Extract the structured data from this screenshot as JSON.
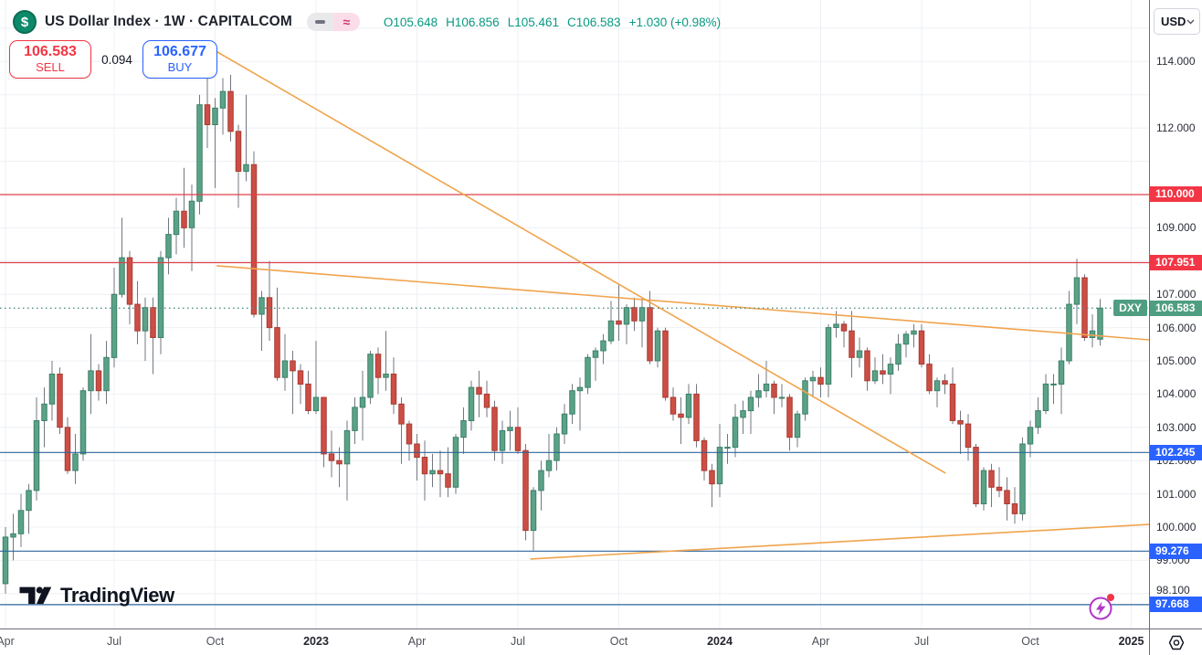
{
  "header": {
    "symbol_logo_glyph": "$",
    "title": "US Dollar Index · 1W · CAPITALCOM",
    "badges": [
      {
        "icon": "minus-icon"
      },
      {
        "icon": "approx-icon",
        "glyph": "≈"
      }
    ],
    "ohlc": {
      "open": "O105.648",
      "high": "H106.856",
      "low": "L105.461",
      "close": "C106.583",
      "change": "+1.030 (+0.98%)"
    }
  },
  "trade_panel": {
    "sell_price": "106.583",
    "sell_label": "SELL",
    "spread": "0.094",
    "buy_price": "106.677",
    "buy_label": "BUY"
  },
  "price_axis": {
    "currency": "USD",
    "plain_ticks": [
      {
        "price": 114.0,
        "label": "114.000"
      },
      {
        "price": 112.0,
        "label": "112.000"
      },
      {
        "price": 109.0,
        "label": "109.000"
      },
      {
        "price": 107.0,
        "label": "107.000"
      },
      {
        "price": 106.0,
        "label": "106.000"
      },
      {
        "price": 105.0,
        "label": "105.000"
      },
      {
        "price": 104.0,
        "label": "104.000"
      },
      {
        "price": 103.0,
        "label": "103.000"
      },
      {
        "price": 102.0,
        "label": "102.000"
      },
      {
        "price": 101.0,
        "label": "101.000"
      },
      {
        "price": 100.0,
        "label": "100.000"
      },
      {
        "price": 99.0,
        "label": "99.000"
      },
      {
        "price": 98.1,
        "label": "98.100"
      }
    ]
  },
  "watermark": {
    "logo_text": "TradingView"
  },
  "colors": {
    "up_fill": "#5ba287",
    "up_border": "#3d8068",
    "down_fill": "#cc4e45",
    "down_border": "#a83a32",
    "wick": "#737780",
    "grid": "#eef0f5",
    "red_line": "#df4049",
    "blue_line": "#2d649c",
    "orange": "#f0a44d",
    "label_red": "#f23645",
    "label_blue": "#2962ff",
    "label_teal": "#4f9e82",
    "dotted": "#4e8e86",
    "ohlc_green": "#089981"
  },
  "chart_data": {
    "type": "candlestick",
    "symbol": "DXY",
    "timeframe": "1W",
    "y_axis": {
      "min": 96.95,
      "max": 115.85,
      "grid_prices_from": 98,
      "grid_prices_to": 115
    },
    "x_axis": {
      "ticks": [
        {
          "label": "Apr",
          "week": 0,
          "year": false
        },
        {
          "label": "Jul",
          "week": 14,
          "year": false
        },
        {
          "label": "Oct",
          "week": 27,
          "year": false
        },
        {
          "label": "2023",
          "week": 40,
          "year": true
        },
        {
          "label": "Apr",
          "week": 53,
          "year": false
        },
        {
          "label": "Jul",
          "week": 66,
          "year": false
        },
        {
          "label": "Oct",
          "week": 79,
          "year": false
        },
        {
          "label": "2024",
          "week": 92,
          "year": true
        },
        {
          "label": "Apr",
          "week": 105,
          "year": false
        },
        {
          "label": "Jul",
          "week": 118,
          "year": false
        },
        {
          "label": "Oct",
          "week": 132,
          "year": false
        },
        {
          "label": "2025",
          "week": 145,
          "year": true
        }
      ]
    },
    "candles": [
      [
        98.3,
        100.0,
        98.0,
        99.7
      ],
      [
        99.7,
        100.4,
        99.0,
        99.8
      ],
      [
        99.8,
        101.0,
        99.4,
        100.5
      ],
      [
        100.5,
        101.3,
        99.8,
        101.1
      ],
      [
        101.1,
        103.9,
        100.8,
        103.2
      ],
      [
        103.2,
        104.2,
        102.4,
        103.7
      ],
      [
        103.7,
        105.0,
        103.2,
        104.6
      ],
      [
        104.6,
        104.8,
        102.8,
        103.0
      ],
      [
        103.0,
        103.3,
        101.6,
        101.7
      ],
      [
        101.7,
        102.8,
        101.3,
        102.2
      ],
      [
        102.2,
        104.2,
        102.0,
        104.1
      ],
      [
        104.1,
        105.8,
        103.4,
        104.7
      ],
      [
        104.7,
        104.9,
        103.8,
        104.1
      ],
      [
        104.1,
        105.6,
        103.7,
        105.1
      ],
      [
        105.1,
        107.8,
        104.8,
        107.0
      ],
      [
        107.0,
        109.3,
        106.9,
        108.1
      ],
      [
        108.1,
        108.3,
        106.1,
        106.7
      ],
      [
        106.7,
        107.4,
        105.5,
        105.9
      ],
      [
        105.9,
        106.9,
        105.0,
        106.6
      ],
      [
        106.6,
        106.9,
        104.6,
        105.7
      ],
      [
        105.7,
        108.3,
        105.2,
        108.1
      ],
      [
        108.1,
        109.3,
        107.6,
        108.8
      ],
      [
        108.8,
        109.9,
        108.2,
        109.5
      ],
      [
        109.5,
        110.8,
        108.4,
        109.0
      ],
      [
        109.0,
        110.3,
        107.7,
        109.8
      ],
      [
        109.8,
        113.0,
        109.4,
        112.7
      ],
      [
        112.7,
        113.5,
        111.4,
        112.1
      ],
      [
        112.1,
        112.9,
        110.2,
        112.6
      ],
      [
        112.6,
        113.5,
        111.8,
        113.1
      ],
      [
        113.1,
        113.6,
        111.6,
        111.9
      ],
      [
        111.9,
        112.1,
        109.6,
        110.7
      ],
      [
        110.7,
        113.0,
        110.4,
        110.9
      ],
      [
        110.9,
        111.3,
        106.3,
        106.4
      ],
      [
        106.4,
        107.1,
        105.3,
        106.9
      ],
      [
        106.9,
        108.0,
        105.6,
        106.0
      ],
      [
        106.0,
        107.2,
        104.4,
        104.5
      ],
      [
        104.5,
        105.8,
        104.1,
        105.0
      ],
      [
        105.0,
        105.3,
        103.4,
        104.7
      ],
      [
        104.7,
        104.9,
        103.7,
        104.3
      ],
      [
        104.3,
        104.7,
        103.4,
        103.5
      ],
      [
        103.5,
        105.6,
        103.4,
        103.9
      ],
      [
        103.9,
        103.9,
        101.8,
        102.2
      ],
      [
        102.2,
        102.9,
        101.5,
        102.0
      ],
      [
        102.0,
        102.4,
        101.2,
        101.9
      ],
      [
        101.9,
        103.2,
        100.8,
        102.9
      ],
      [
        102.9,
        103.9,
        102.5,
        103.6
      ],
      [
        103.6,
        104.7,
        102.6,
        103.9
      ],
      [
        103.9,
        105.3,
        103.7,
        105.2
      ],
      [
        105.2,
        105.4,
        104.0,
        104.5
      ],
      [
        104.5,
        105.9,
        104.1,
        104.6
      ],
      [
        104.6,
        105.1,
        103.4,
        103.7
      ],
      [
        103.7,
        103.9,
        101.9,
        103.1
      ],
      [
        103.1,
        103.2,
        102.0,
        102.5
      ],
      [
        102.5,
        102.8,
        101.4,
        102.1
      ],
      [
        102.1,
        102.6,
        100.8,
        101.6
      ],
      [
        101.6,
        102.2,
        101.2,
        101.7
      ],
      [
        101.7,
        102.3,
        100.9,
        101.6
      ],
      [
        101.6,
        102.4,
        100.9,
        101.2
      ],
      [
        101.2,
        102.8,
        101.0,
        102.7
      ],
      [
        102.7,
        103.6,
        102.2,
        103.2
      ],
      [
        103.2,
        104.4,
        102.9,
        104.2
      ],
      [
        104.2,
        104.7,
        103.3,
        104.0
      ],
      [
        104.0,
        104.4,
        103.3,
        103.6
      ],
      [
        103.6,
        103.8,
        102.0,
        102.3
      ],
      [
        102.3,
        103.2,
        101.9,
        102.9
      ],
      [
        102.9,
        103.5,
        102.3,
        103.0
      ],
      [
        103.0,
        103.6,
        102.2,
        102.3
      ],
      [
        102.3,
        102.5,
        99.6,
        99.9
      ],
      [
        99.9,
        101.2,
        99.3,
        101.1
      ],
      [
        101.1,
        102.0,
        100.5,
        101.7
      ],
      [
        101.7,
        102.8,
        101.5,
        102.0
      ],
      [
        102.0,
        103.0,
        101.7,
        102.8
      ],
      [
        102.8,
        103.7,
        102.5,
        103.4
      ],
      [
        103.4,
        104.3,
        103.1,
        104.1
      ],
      [
        104.1,
        104.5,
        102.9,
        104.2
      ],
      [
        104.2,
        105.2,
        104.0,
        105.1
      ],
      [
        105.1,
        105.4,
        104.4,
        105.3
      ],
      [
        105.3,
        105.8,
        104.9,
        105.6
      ],
      [
        105.6,
        106.8,
        105.5,
        106.2
      ],
      [
        106.2,
        107.3,
        105.6,
        106.1
      ],
      [
        106.1,
        106.7,
        105.5,
        106.6
      ],
      [
        106.6,
        106.9,
        105.9,
        106.2
      ],
      [
        106.2,
        106.9,
        105.4,
        106.6
      ],
      [
        106.6,
        107.1,
        104.9,
        105.0
      ],
      [
        105.0,
        106.0,
        104.8,
        105.9
      ],
      [
        105.9,
        106.0,
        103.8,
        103.9
      ],
      [
        103.9,
        104.2,
        103.2,
        103.4
      ],
      [
        103.4,
        103.9,
        102.5,
        103.3
      ],
      [
        103.3,
        104.3,
        103.1,
        104.0
      ],
      [
        104.0,
        104.3,
        102.4,
        102.6
      ],
      [
        102.6,
        102.7,
        101.4,
        101.7
      ],
      [
        101.7,
        101.9,
        100.6,
        101.3
      ],
      [
        101.3,
        103.1,
        100.9,
        102.4
      ],
      [
        102.4,
        102.8,
        101.9,
        102.4
      ],
      [
        102.4,
        103.7,
        102.1,
        103.3
      ],
      [
        103.3,
        103.8,
        102.8,
        103.5
      ],
      [
        103.5,
        104.1,
        102.8,
        103.9
      ],
      [
        103.9,
        104.6,
        103.6,
        104.1
      ],
      [
        104.1,
        105.0,
        103.9,
        104.3
      ],
      [
        104.3,
        104.4,
        103.4,
        103.9
      ],
      [
        103.9,
        104.3,
        103.6,
        103.9
      ],
      [
        103.9,
        104.0,
        102.3,
        102.7
      ],
      [
        102.7,
        103.5,
        102.4,
        103.4
      ],
      [
        103.4,
        104.5,
        103.2,
        104.4
      ],
      [
        104.4,
        104.7,
        103.9,
        104.5
      ],
      [
        104.5,
        104.8,
        103.9,
        104.3
      ],
      [
        104.3,
        106.1,
        103.9,
        106.0
      ],
      [
        106.0,
        106.5,
        105.7,
        106.1
      ],
      [
        106.1,
        106.2,
        105.4,
        105.9
      ],
      [
        105.9,
        106.5,
        104.5,
        105.1
      ],
      [
        105.1,
        105.7,
        104.8,
        105.3
      ],
      [
        105.3,
        105.4,
        104.1,
        104.4
      ],
      [
        104.4,
        105.1,
        104.3,
        104.7
      ],
      [
        104.7,
        105.2,
        104.3,
        104.6
      ],
      [
        104.6,
        105.1,
        104.0,
        104.9
      ],
      [
        104.9,
        105.8,
        104.7,
        105.5
      ],
      [
        105.5,
        105.9,
        105.1,
        105.8
      ],
      [
        105.8,
        106.1,
        105.4,
        105.9
      ],
      [
        105.9,
        106.1,
        104.8,
        104.9
      ],
      [
        104.9,
        105.2,
        104.0,
        104.1
      ],
      [
        104.1,
        104.5,
        103.6,
        104.4
      ],
      [
        104.4,
        104.6,
        104.0,
        104.3
      ],
      [
        104.3,
        104.8,
        103.1,
        103.2
      ],
      [
        103.2,
        103.5,
        102.2,
        103.1
      ],
      [
        103.1,
        103.4,
        102.0,
        102.4
      ],
      [
        102.4,
        102.5,
        100.6,
        100.7
      ],
      [
        100.7,
        101.8,
        100.5,
        101.7
      ],
      [
        101.7,
        101.9,
        100.6,
        101.2
      ],
      [
        101.2,
        101.8,
        100.9,
        101.1
      ],
      [
        101.1,
        101.5,
        100.2,
        100.7
      ],
      [
        100.7,
        101.2,
        100.1,
        100.4
      ],
      [
        100.4,
        102.7,
        100.2,
        102.5
      ],
      [
        102.5,
        103.2,
        102.1,
        103.0
      ],
      [
        103.0,
        103.9,
        102.8,
        103.5
      ],
      [
        103.5,
        104.6,
        103.4,
        104.3
      ],
      [
        104.3,
        104.6,
        103.7,
        104.3
      ],
      [
        104.3,
        105.4,
        103.4,
        105.0
      ],
      [
        105.0,
        107.1,
        104.9,
        106.7
      ],
      [
        106.7,
        108.07,
        106.1,
        107.5
      ],
      [
        107.5,
        107.6,
        105.6,
        105.7
      ],
      [
        105.7,
        106.4,
        105.4,
        105.9
      ],
      [
        105.648,
        106.856,
        105.461,
        106.583
      ]
    ],
    "horizontal_lines": [
      {
        "price": 110.0,
        "label": "110.000",
        "color": "red"
      },
      {
        "price": 107.951,
        "label": "107.951",
        "color": "red"
      },
      {
        "price": 102.245,
        "label": "102.245",
        "color": "blue"
      },
      {
        "price": 99.276,
        "label": "99.276",
        "color": "blue"
      },
      {
        "price": 97.668,
        "label": "97.668",
        "color": "blue"
      }
    ],
    "trendlines": [
      {
        "w1": 26.9,
        "p1": 114.34,
        "w2": 121.1,
        "p2": 101.62
      },
      {
        "w1": 27.2,
        "p1": 107.86,
        "w2": 147.3,
        "p2": 105.63
      },
      {
        "w1": 67.6,
        "p1": 99.04,
        "w2": 147.3,
        "p2": 100.08
      }
    ],
    "current_price_line": {
      "price": 106.583,
      "label": "106.583",
      "tag": "DXY"
    }
  }
}
